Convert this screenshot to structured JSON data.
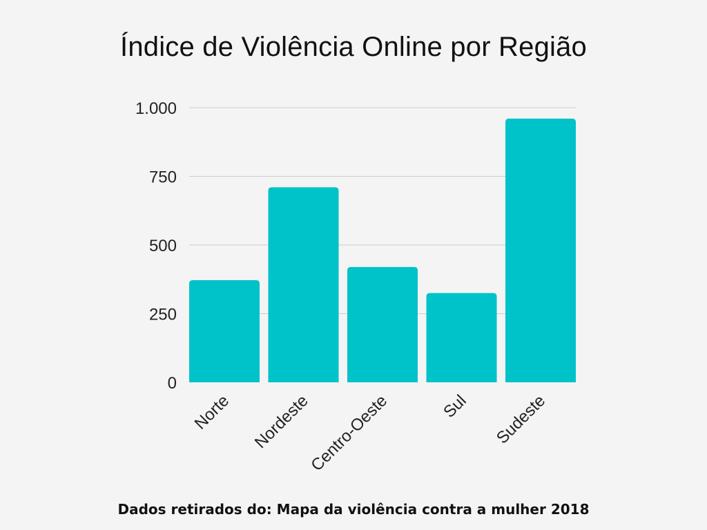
{
  "colors": {
    "background": "#f4f4f4",
    "bar": "#00c2c9",
    "gridline": "#cccccc",
    "text": "#111111"
  },
  "chart_data": {
    "type": "bar",
    "title": "Índice de Violência Online por Região",
    "xlabel": "",
    "ylabel": "",
    "categories": [
      "Norte",
      "Nordeste",
      "Centro-Oeste",
      "Sul",
      "Sudeste"
    ],
    "values": [
      372,
      710,
      420,
      325,
      960
    ],
    "ylim": [
      0,
      1000
    ],
    "yticks": [
      0,
      250,
      500,
      750,
      1000
    ],
    "ytick_labels": [
      "0",
      "250",
      "500",
      "750",
      "1.000"
    ],
    "grid": true,
    "legend": "none"
  },
  "footer": {
    "source": "Dados retirados do: Mapa da violência contra a mulher 2018"
  }
}
